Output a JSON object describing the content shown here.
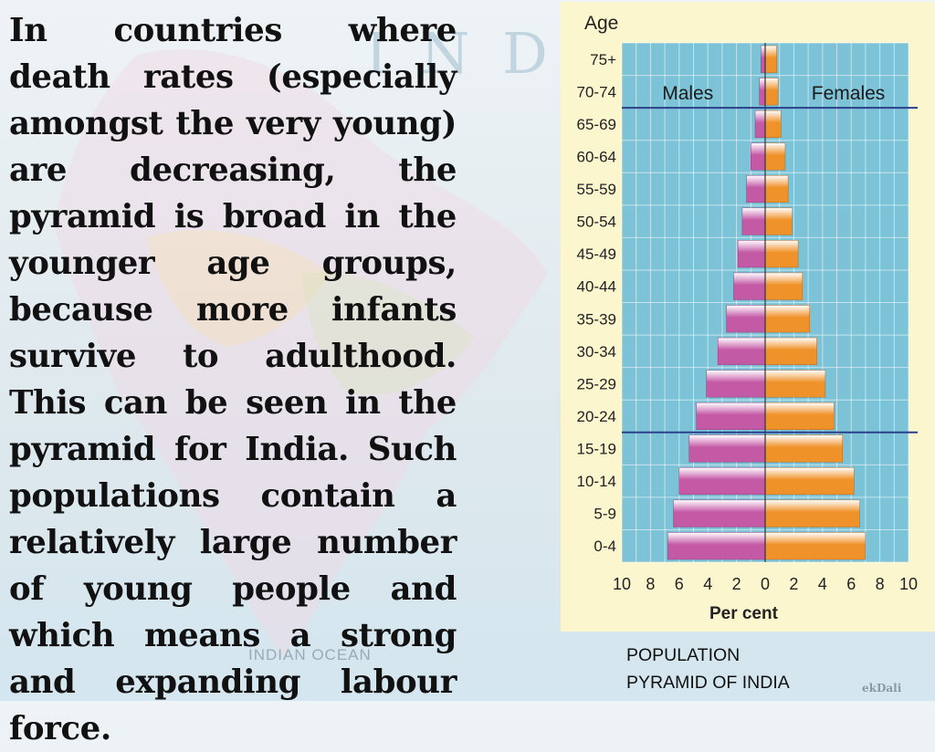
{
  "body_text": "In countries where death rates (especially amongst the very young) are decreasing, the pyramid is broad in the younger age groups, because more infants survive to adulthood. This can be seen in the pyramid for India. Such populations contain a relatively large number of young people and which means a strong and expanding labour force.",
  "caption": {
    "line1": "POPULATION",
    "line2": "PYRAMID OF INDIA"
  },
  "colors": {
    "males": "#c45aa6",
    "females": "#f0922a",
    "plot_bg": "#7cc3d8",
    "chart_bg": "#fcf6cf"
  },
  "chart_data": {
    "type": "bar",
    "orientation": "horizontal",
    "title": "",
    "ylabel": "Age",
    "xlabel": "Per cent",
    "xlim": [
      -10,
      10
    ],
    "x_ticks": [
      10,
      8,
      6,
      4,
      2,
      0,
      2,
      4,
      6,
      8,
      10
    ],
    "grid": true,
    "categories": [
      "0-4",
      "5-9",
      "10-14",
      "15-19",
      "20-24",
      "25-29",
      "30-34",
      "35-39",
      "40-44",
      "45-49",
      "50-54",
      "55-59",
      "60-64",
      "65-69",
      "70-74",
      "75+"
    ],
    "series": [
      {
        "name": "Males",
        "values": [
          6.8,
          6.4,
          6.0,
          5.3,
          4.8,
          4.1,
          3.3,
          2.7,
          2.2,
          1.9,
          1.6,
          1.3,
          1.0,
          0.7,
          0.4,
          0.3
        ]
      },
      {
        "name": "Females",
        "values": [
          7.0,
          6.6,
          6.2,
          5.4,
          4.8,
          4.2,
          3.6,
          3.1,
          2.6,
          2.3,
          1.9,
          1.6,
          1.4,
          1.1,
          0.9,
          0.8
        ]
      }
    ],
    "reference_lines_at": [
      "15-19",
      "65-69"
    ]
  }
}
